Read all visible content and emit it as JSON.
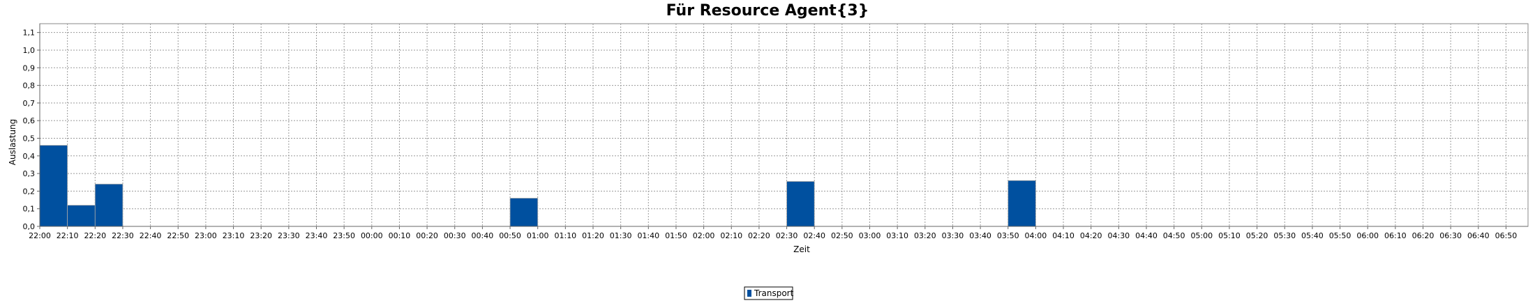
{
  "chart_data": {
    "type": "bar",
    "title": "Für Resource Agent{3}",
    "xlabel": "Zeit",
    "ylabel": "Auslastung",
    "ylim": [
      0,
      1.15
    ],
    "yticks": [
      "0,0",
      "0,1",
      "0,2",
      "0,3",
      "0,4",
      "0,5",
      "0,6",
      "0,7",
      "0,8",
      "0,9",
      "1,0",
      "1,1"
    ],
    "grid": true,
    "legend_position": "bottom-center",
    "categories": [
      "22:00",
      "22:10",
      "22:20",
      "22:30",
      "22:40",
      "22:50",
      "23:00",
      "23:10",
      "23:20",
      "23:30",
      "23:40",
      "23:50",
      "00:00",
      "00:10",
      "00:20",
      "00:30",
      "00:40",
      "00:50",
      "01:00",
      "01:10",
      "01:20",
      "01:30",
      "01:40",
      "01:50",
      "02:00",
      "02:10",
      "02:20",
      "02:30",
      "02:40",
      "02:50",
      "03:00",
      "03:10",
      "03:20",
      "03:30",
      "03:40",
      "03:50",
      "04:00",
      "04:10",
      "04:20",
      "04:30",
      "04:40",
      "04:50",
      "05:00",
      "05:10",
      "05:20",
      "05:30",
      "05:40",
      "05:50",
      "06:00",
      "06:10",
      "06:20",
      "06:30",
      "06:40",
      "06:50"
    ],
    "series": [
      {
        "name": "Transport",
        "color": "#00509f",
        "bars": [
          {
            "start": 0,
            "value": 0.46
          },
          {
            "start": 1,
            "value": 0.12
          },
          {
            "start": 2,
            "value": 0.24
          },
          {
            "start": 17,
            "value": 0.16
          },
          {
            "start": 27,
            "value": 0.255
          },
          {
            "start": 35,
            "value": 0.26
          }
        ]
      }
    ]
  }
}
